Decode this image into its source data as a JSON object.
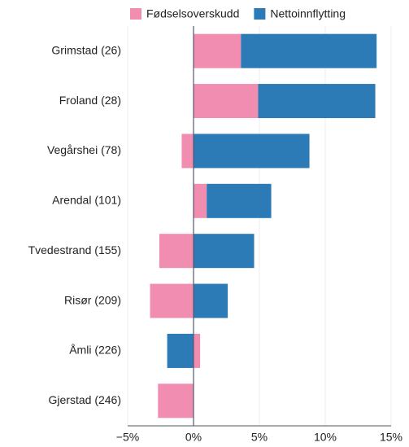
{
  "chart_data": {
    "type": "stacked-barh",
    "categories": [
      "Grimstad (26)",
      "Froland (28)",
      "Vegårshei (78)",
      "Arendal (101)",
      "Tvedestrand (155)",
      "Risør (209)",
      "Åmli (226)",
      "Gjerstad (246)"
    ],
    "series": [
      {
        "name": "Fødselsoverskudd",
        "color": "#f28db2",
        "values": [
          3.6,
          4.9,
          -0.9,
          1.0,
          -2.6,
          -3.3,
          0.5,
          -2.7
        ]
      },
      {
        "name": "Nettoinnflytting",
        "color": "#2c7bb6",
        "values": [
          10.3,
          8.9,
          8.8,
          4.9,
          4.6,
          2.6,
          -2.0,
          0
        ]
      }
    ],
    "xlim": [
      -5,
      15
    ],
    "xticks": [
      {
        "value": -5,
        "label": "−5%"
      },
      {
        "value": 0,
        "label": "0%"
      },
      {
        "value": 5,
        "label": "5%"
      },
      {
        "value": 10,
        "label": "10%"
      },
      {
        "value": 15,
        "label": "15%"
      }
    ],
    "grid": true
  }
}
